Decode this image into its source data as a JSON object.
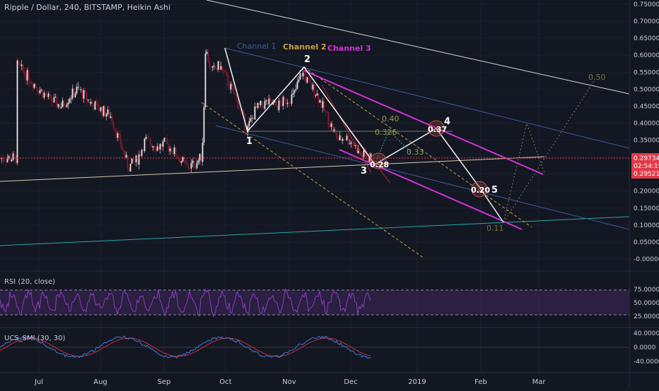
{
  "header": {
    "title": "Ripple / Dollar, 240, BITSTAMP, Heikin Ashi"
  },
  "colors": {
    "background": "#131722",
    "grid": "#1f2433",
    "axis_text": "#c8ccd6",
    "candle_up": "#e8e8e8",
    "candle_down": "#8b1a2a",
    "magenta": "#d433d4",
    "channel1": "#3c5a9a",
    "channel2": "#c8a040",
    "trend_white": "#e0e0d0",
    "cyan": "#2aa5a5",
    "olive": "#7a7a3a",
    "rsi_line": "#8b3fbf",
    "smi_red": "#cc2b3a",
    "smi_blue": "#3a7ad4",
    "price_tag_red": "#e03a4a"
  },
  "price_axis": {
    "labels": [
      "0.75000",
      "0.70000",
      "0.65000",
      "0.60000",
      "0.55000",
      "0.50000",
      "0.45000",
      "0.40000",
      "0.35000",
      "0.30000",
      "0.25000",
      "0.20000",
      "0.15000",
      "0.10000",
      "0.05000",
      "-0.00000"
    ],
    "current_price": "0.29734",
    "countdown": "02:54:19",
    "second_price": "0.29521"
  },
  "time_axis": {
    "labels": [
      "Jul",
      "Aug",
      "Sep",
      "Oct",
      "Nov",
      "Dec",
      "2019",
      "Feb",
      "Mar"
    ]
  },
  "channels": {
    "channel1": "Channel 1",
    "channel2": "Channel 2",
    "channel3": "Channel 3"
  },
  "wave_labels": [
    "1",
    "2",
    "3",
    "4",
    "5"
  ],
  "targets": {
    "t050": "0.50",
    "t040": "0.40",
    "t0326": "0.326",
    "t033": "0.33",
    "t028": "0.28",
    "t037": "0.37",
    "t020": "0.20",
    "t011": "0.11"
  },
  "rsi": {
    "title": "RSI (20, close)",
    "labels": [
      "75.0000",
      "50.0000",
      "25.0000"
    ]
  },
  "smi": {
    "title": "UCS_SMI (30, 30)",
    "labels": [
      "40.0000",
      "0.0000",
      "-40.0000"
    ]
  },
  "chart_data": {
    "type": "candlestick",
    "title": "Ripple / Dollar, 240, BITSTAMP, Heikin Ashi",
    "x": [
      "Jul",
      "Aug",
      "Sep",
      "Oct",
      "Nov",
      "Dec",
      "2019",
      "Feb",
      "Mar"
    ],
    "ylim": [
      -0.02,
      0.76
    ],
    "series": [
      {
        "values": [
          [
            "Jun 20",
            0.57
          ],
          [
            "Jun 25",
            0.54
          ],
          [
            "Jul 1",
            0.5
          ],
          [
            "Jul 6",
            0.47
          ],
          [
            "Jul 12",
            0.45
          ],
          [
            "Jul 16",
            0.48
          ],
          [
            "Jul 20",
            0.5
          ],
          [
            "Jul 26",
            0.46
          ],
          [
            "Aug 1",
            0.44
          ],
          [
            "Aug 6",
            0.42
          ],
          [
            "Aug 9",
            0.36
          ],
          [
            "Aug 12",
            0.31
          ],
          [
            "Aug 14",
            0.27
          ],
          [
            "Aug 18",
            0.29
          ],
          [
            "Aug 22",
            0.35
          ],
          [
            "Aug 28",
            0.33
          ],
          [
            "Sep 1",
            0.34
          ],
          [
            "Sep 5",
            0.32
          ],
          [
            "Sep 8",
            0.3
          ],
          [
            "Sep 12",
            0.27
          ],
          [
            "Sep 16",
            0.28
          ],
          [
            "Sep 19",
            0.3
          ],
          [
            "Sep 20",
            0.38
          ],
          [
            "Sep 21",
            0.62
          ],
          [
            "Sep 24",
            0.55
          ],
          [
            "Sep 28",
            0.57
          ],
          [
            "Oct 2",
            0.52
          ],
          [
            "Oct 6",
            0.47
          ],
          [
            "Oct 11",
            0.38
          ],
          [
            "Oct 15",
            0.44
          ],
          [
            "Oct 20",
            0.46
          ],
          [
            "Oct 25",
            0.45
          ],
          [
            "Oct 30",
            0.47
          ],
          [
            "Nov 3",
            0.48
          ],
          [
            "Nov 7",
            0.55
          ],
          [
            "Nov 11",
            0.51
          ],
          [
            "Nov 14",
            0.49
          ],
          [
            "Nov 17",
            0.45
          ],
          [
            "Nov 20",
            0.41
          ],
          [
            "Nov 23",
            0.37
          ],
          [
            "Nov 25",
            0.35
          ],
          [
            "Nov 28",
            0.36
          ],
          [
            "Dec 2",
            0.34
          ],
          [
            "Dec 5",
            0.31
          ],
          [
            "Dec 8",
            0.3
          ],
          [
            "Dec 10",
            0.297
          ]
        ]
      }
    ]
  }
}
